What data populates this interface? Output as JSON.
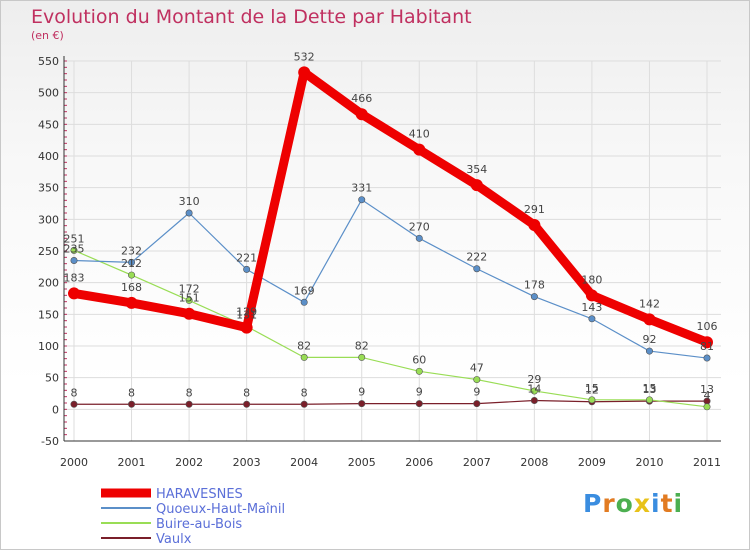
{
  "title": "Evolution du Montant de la Dette par Habitant",
  "unit": "(en €)",
  "logo": "Proxiti",
  "colors": {
    "title": "#c03060",
    "axis": "#333333",
    "grid": "#dddddd"
  },
  "chart_data": {
    "type": "line",
    "x": [
      "2000",
      "2001",
      "2002",
      "2003",
      "2004",
      "2005",
      "2006",
      "2007",
      "2008",
      "2009",
      "2010",
      "2011"
    ],
    "ylim": [
      -50,
      550
    ],
    "yticks": [
      -50,
      0,
      50,
      100,
      150,
      200,
      250,
      300,
      350,
      400,
      450,
      500,
      550
    ],
    "grid": true,
    "legend_position": "bottom-left",
    "series": [
      {
        "name": "HARAVESNES",
        "color": "#ee0000",
        "values": [
          183,
          168,
          151,
          129,
          532,
          466,
          410,
          354,
          291,
          180,
          142,
          106
        ]
      },
      {
        "name": "Quoeux-Haut-Maînil",
        "color": "#5b8fc8",
        "values": [
          235,
          232,
          310,
          221,
          169,
          331,
          270,
          222,
          178,
          143,
          92,
          81
        ]
      },
      {
        "name": "Buire-au-Bois",
        "color": "#99dd55",
        "values": [
          251,
          212,
          172,
          131,
          82,
          82,
          60,
          47,
          29,
          15,
          15,
          4
        ]
      },
      {
        "name": "Vaulx",
        "color": "#7a1f2a",
        "values": [
          8,
          8,
          8,
          8,
          8,
          9,
          9,
          9,
          14,
          12,
          13,
          13
        ]
      }
    ]
  }
}
